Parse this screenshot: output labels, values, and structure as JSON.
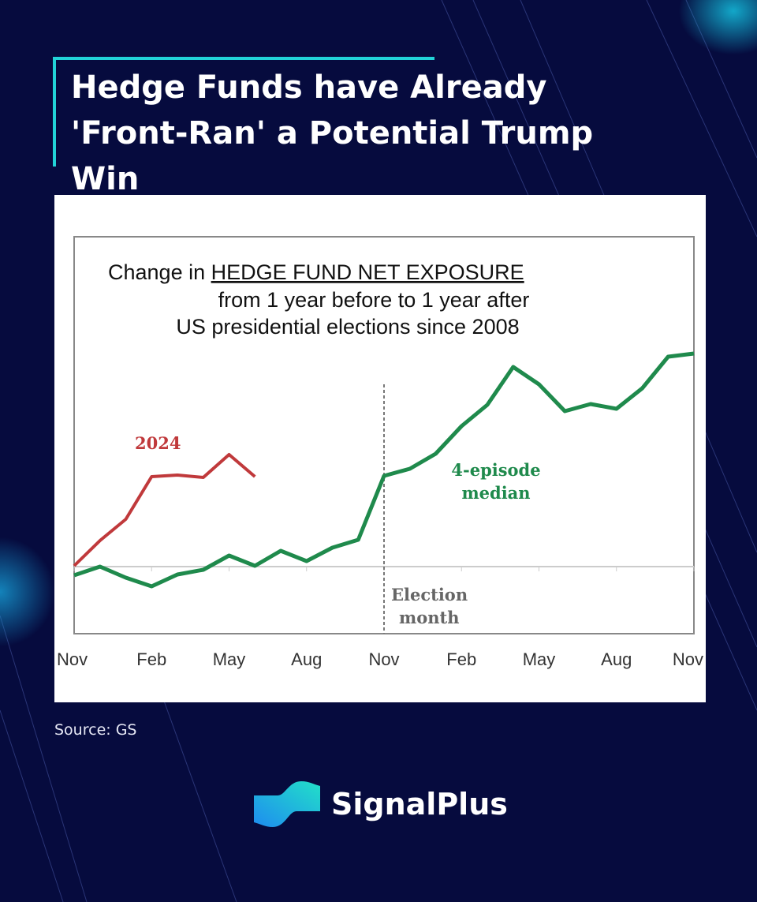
{
  "header": {
    "title": "Hedge Funds have Already 'Front-Ran' a Potential Trump Win"
  },
  "footer": {
    "source": "Source: GS",
    "brand": "SignalPlus"
  },
  "colors": {
    "background": "#060b3e",
    "accent": "#22d3d8",
    "series_2024": "#c0393b",
    "series_median": "#1f8a4c"
  },
  "chart_data": {
    "type": "line",
    "title": "Change in HEDGE FUND NET EXPOSURE",
    "title_line1_prefix": "Change in ",
    "title_line1_underlined": "HEDGE FUND NET EXPOSURE",
    "subtitle_line2": "from 1 year before to 1 year after",
    "subtitle_line3": "US presidential elections since 2008",
    "xlabel": "",
    "ylabel": "",
    "x_tick_labels": [
      "Nov",
      "Feb",
      "May",
      "Aug",
      "Nov",
      "Feb",
      "May",
      "Aug",
      "Nov"
    ],
    "x_months": [
      0,
      1,
      2,
      3,
      4,
      5,
      6,
      7,
      8,
      9,
      10,
      11,
      12,
      13,
      14,
      15,
      16,
      17,
      18,
      19,
      20,
      21,
      22,
      23,
      24
    ],
    "ylim": [
      -8.5,
      41.8
    ],
    "grid": false,
    "annotations": {
      "election": "Election",
      "election_2": "month",
      "election_month_index": 12,
      "label_2024": "2024",
      "label_median_1": "4-episode",
      "label_median_2": "median"
    },
    "series": [
      {
        "name": "4-episode median",
        "values": [
          -1.1,
          0,
          -1.4,
          -2.5,
          -1.0,
          -0.4,
          1.4,
          0.1,
          2.0,
          0.7,
          2.4,
          3.4,
          11.5,
          12.4,
          14.3,
          17.8,
          20.5,
          25.3,
          23.1,
          19.7,
          20.6,
          20.0,
          22.6,
          26.6,
          27.0
        ]
      },
      {
        "name": "2024",
        "values": [
          0.1,
          3.3,
          6.0,
          11.4,
          11.6,
          11.3,
          14.2,
          11.4
        ]
      }
    ]
  }
}
